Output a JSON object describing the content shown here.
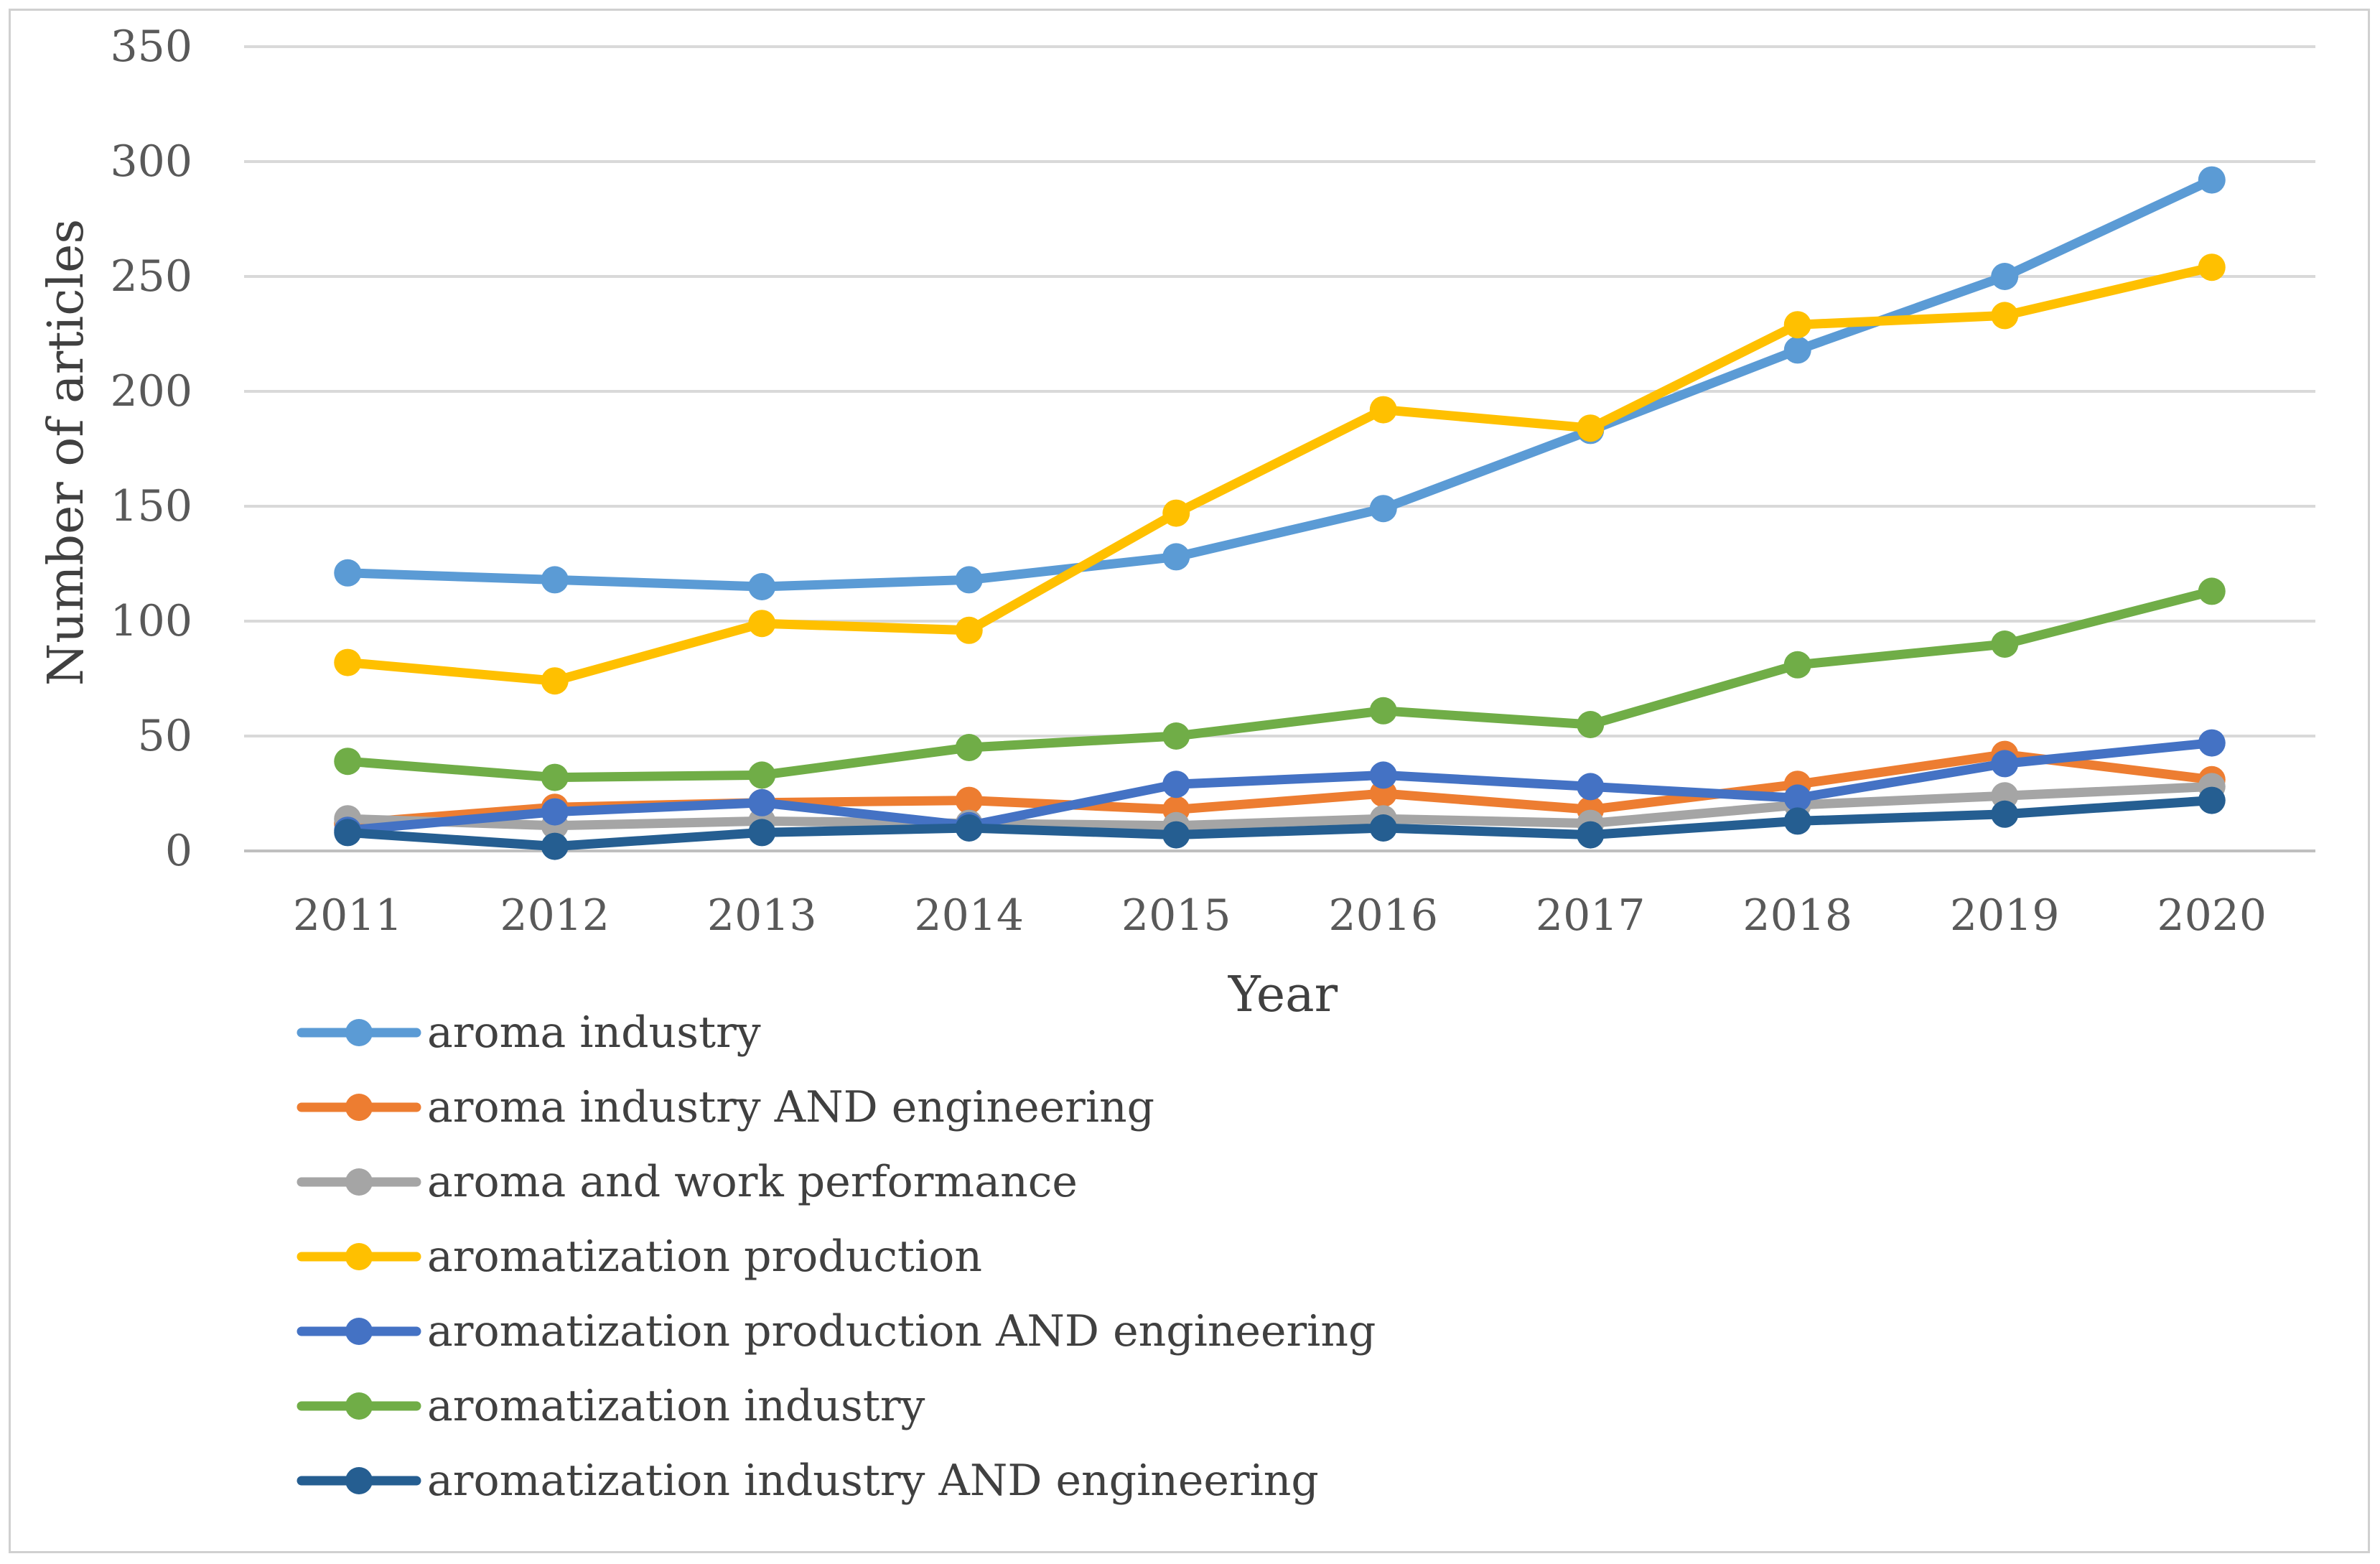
{
  "chart_data": {
    "type": "line",
    "title": "",
    "xlabel": "Year",
    "ylabel": "Number of articles",
    "ylim": [
      0,
      350
    ],
    "yticks": [
      0,
      50,
      100,
      150,
      200,
      250,
      300,
      350
    ],
    "grid": true,
    "legend_position": "bottom-left",
    "categories": [
      "2011",
      "2012",
      "2013",
      "2014",
      "2015",
      "2016",
      "2017",
      "2018",
      "2019",
      "2020"
    ],
    "series": [
      {
        "name": "aroma industry",
        "color": "#5b9bd5",
        "values": [
          121,
          118,
          115,
          118,
          128,
          149,
          183,
          218,
          250,
          292
        ]
      },
      {
        "name": "aroma industry AND engineering",
        "color": "#ed7d31",
        "values": [
          12,
          19,
          21,
          22,
          18,
          25,
          18,
          29,
          42,
          31
        ]
      },
      {
        "name": "aroma and work performance",
        "color": "#a5a5a5",
        "values": [
          14,
          11,
          13,
          12,
          11,
          14,
          12,
          20,
          24,
          28
        ]
      },
      {
        "name": "aromatization production",
        "color": "#ffc000",
        "values": [
          82,
          74,
          99,
          96,
          147,
          192,
          184,
          229,
          233,
          254
        ]
      },
      {
        "name": "aromatization production AND engineering",
        "color": "#4472c4",
        "values": [
          9,
          17,
          21,
          11,
          29,
          33,
          28,
          23,
          38,
          47
        ]
      },
      {
        "name": "aromatization industry",
        "color": "#70ad47",
        "values": [
          39,
          32,
          33,
          45,
          50,
          61,
          55,
          81,
          90,
          113
        ]
      },
      {
        "name": "aromatization industry AND engineering",
        "color": "#255e91",
        "values": [
          8,
          2,
          8,
          10,
          7,
          10,
          7,
          13,
          16,
          22
        ]
      }
    ]
  }
}
